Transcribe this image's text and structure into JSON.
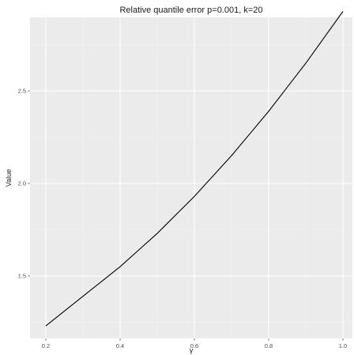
{
  "chart_data": {
    "type": "line",
    "title": "Relative quantile error p=0.001, k=20",
    "xlabel": "γ",
    "ylabel": "Value",
    "xlim": [
      0.2,
      1.0
    ],
    "ylim": [
      1.2,
      2.8
    ],
    "x_ticks": [
      0.2,
      0.4,
      0.6,
      0.8,
      1.0
    ],
    "x_tick_labels": [
      "0.2",
      "0.4",
      "0.6",
      "0.8",
      "1.0"
    ],
    "y_ticks": [
      1.5,
      2.0,
      2.5
    ],
    "y_tick_labels": [
      "1.5",
      "2.0",
      "2.5"
    ],
    "grid": true,
    "legend": "none",
    "series": [
      {
        "x": [
          0.2,
          0.25,
          0.3,
          0.35,
          0.4,
          0.45,
          0.5,
          0.55,
          0.6,
          0.65,
          0.7,
          0.75,
          0.8,
          0.85,
          0.9,
          0.95,
          1.0
        ],
        "values": [
          1.23,
          1.31,
          1.39,
          1.47,
          1.55,
          1.64,
          1.73,
          1.83,
          1.93,
          2.04,
          2.15,
          2.27,
          2.39,
          2.52,
          2.65,
          2.79,
          2.93
        ]
      }
    ],
    "colors": {
      "panel_background": "#ebebeb",
      "major_grid": "#ffffff",
      "minor_grid": "#f2f2f2",
      "line": "#000000",
      "tick": "#333333"
    }
  }
}
